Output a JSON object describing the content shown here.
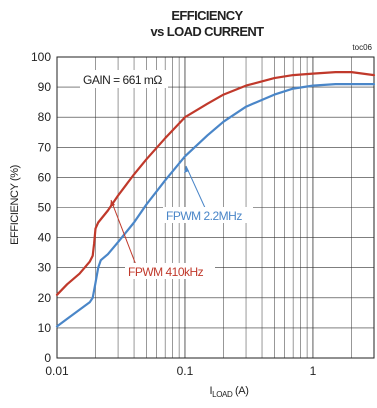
{
  "chart_data": {
    "type": "line",
    "title_line1": "EFFICIENCY",
    "title_line2": "vs LOAD CURRENT",
    "corner_label": "toc06",
    "ylabel": "EFFICIENCY (%)",
    "xlabel_main": "I",
    "xlabel_sub": "LOAD",
    "xlabel_unit": " (A)",
    "xscale": "log",
    "xlim": [
      0.01,
      3
    ],
    "ylim": [
      0,
      100
    ],
    "grid": true,
    "xticks": [
      {
        "v": 0.01,
        "label": "0.01"
      },
      {
        "v": 0.1,
        "label": "0.1"
      },
      {
        "v": 1,
        "label": "1"
      }
    ],
    "yticks": [
      {
        "v": 0,
        "label": "0"
      },
      {
        "v": 10,
        "label": "10"
      },
      {
        "v": 20,
        "label": "20"
      },
      {
        "v": 30,
        "label": "30"
      },
      {
        "v": 40,
        "label": "40"
      },
      {
        "v": 50,
        "label": "50"
      },
      {
        "v": 60,
        "label": "60"
      },
      {
        "v": 70,
        "label": "70"
      },
      {
        "v": 80,
        "label": "80"
      },
      {
        "v": 90,
        "label": "90"
      },
      {
        "v": 100,
        "label": "100"
      }
    ],
    "annotation_gain": "GAIN = 661 mΩ",
    "series": [
      {
        "name": "FPWM 410kHz",
        "color": "#c0392b",
        "x": [
          0.01,
          0.012,
          0.015,
          0.018,
          0.019,
          0.0195,
          0.02,
          0.021,
          0.025,
          0.03,
          0.04,
          0.05,
          0.07,
          0.1,
          0.15,
          0.2,
          0.3,
          0.5,
          0.7,
          1,
          1.5,
          2,
          3
        ],
        "y": [
          21,
          24.5,
          28,
          32,
          34,
          38,
          43,
          45,
          49,
          54,
          61,
          66,
          73,
          80,
          84.5,
          87.5,
          90.5,
          93,
          94,
          94.5,
          95,
          95,
          94
        ]
      },
      {
        "name": "FPWM 2.2MHz",
        "color": "#4a86c8",
        "x": [
          0.01,
          0.012,
          0.015,
          0.018,
          0.019,
          0.02,
          0.021,
          0.022,
          0.025,
          0.03,
          0.04,
          0.05,
          0.07,
          0.1,
          0.15,
          0.2,
          0.3,
          0.5,
          0.7,
          1,
          1.5,
          2,
          3
        ],
        "y": [
          10.5,
          13,
          16,
          18.5,
          20,
          25,
          30,
          32.5,
          34.5,
          38.5,
          45,
          51,
          59,
          67,
          74,
          78.5,
          83.5,
          87.5,
          89.5,
          90.5,
          91,
          91,
          91
        ]
      }
    ]
  }
}
